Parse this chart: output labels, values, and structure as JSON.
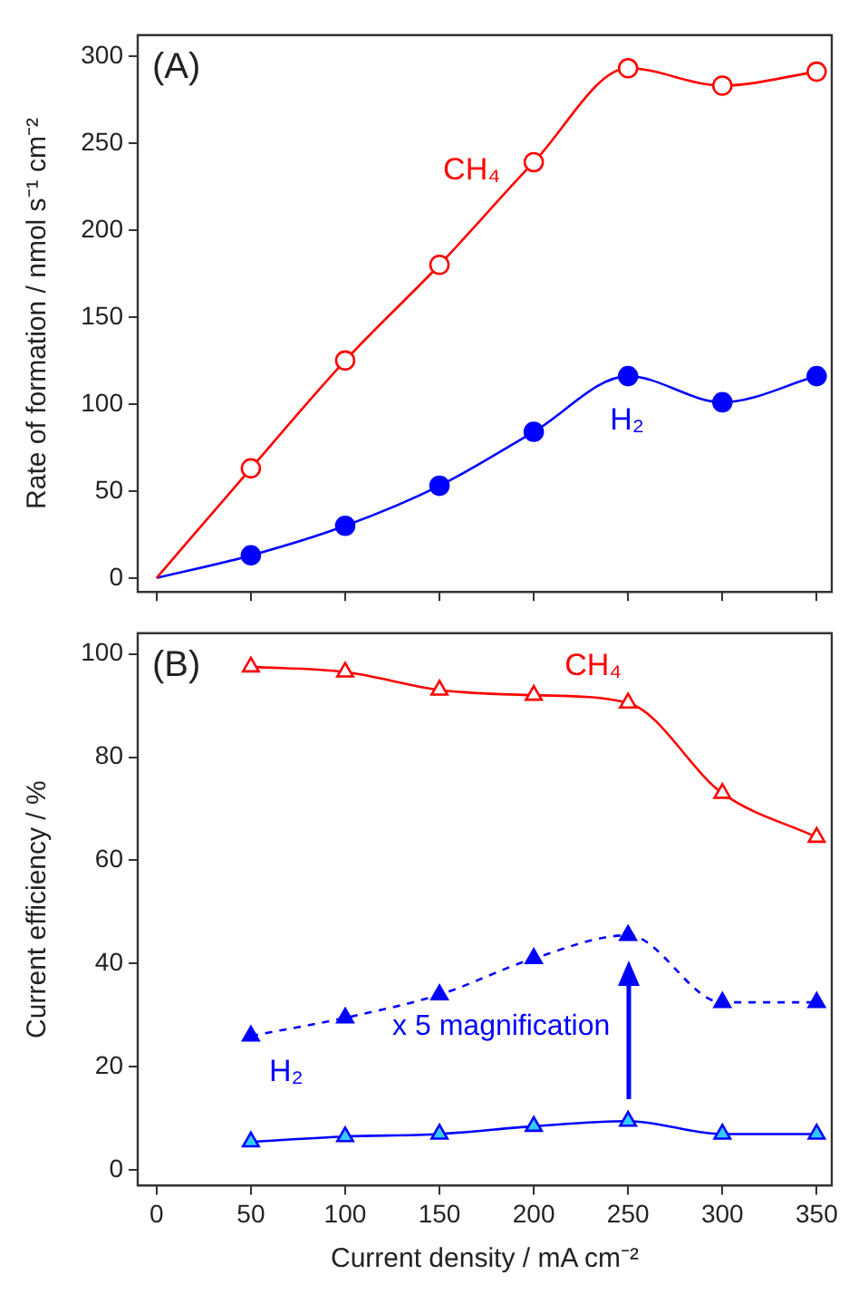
{
  "chart_data": [
    {
      "type": "line",
      "title": "(A)",
      "ylabel": "Rate of formation / nmol s⁻¹ cm⁻²",
      "x": [
        0,
        50,
        100,
        150,
        200,
        250,
        300,
        350
      ],
      "xlim": [
        -10,
        358
      ],
      "xticks": [
        0,
        50,
        100,
        150,
        200,
        250,
        300,
        350
      ],
      "ylim": [
        -8,
        312
      ],
      "yticks": [
        0,
        50,
        100,
        150,
        200,
        250,
        300
      ],
      "tick_labels": "y",
      "grid": false,
      "legend": false,
      "marker": "circle",
      "series": [
        {
          "name": "CH₄",
          "color": "#ff0000",
          "values": [
            0,
            63,
            125,
            180,
            239,
            293,
            283,
            291
          ]
        },
        {
          "name": "H₂",
          "color": "#0000ff",
          "values": [
            0,
            13,
            30,
            53,
            84,
            116,
            101,
            116
          ]
        }
      ]
    },
    {
      "type": "line",
      "title": "(B)",
      "xlabel": "Current density / mA cm⁻²",
      "ylabel": "Current efficiency / %",
      "x": [
        50,
        100,
        150,
        200,
        250,
        300,
        350
      ],
      "xlim": [
        -10,
        358
      ],
      "xticks": [
        0,
        50,
        100,
        150,
        200,
        250,
        300,
        350
      ],
      "ylim": [
        -3,
        104
      ],
      "yticks": [
        0,
        20,
        40,
        60,
        80,
        100
      ],
      "grid": false,
      "legend": false,
      "marker": "triangle",
      "annotations": [
        "x 5 magnification"
      ],
      "series": [
        {
          "name": "CH₄",
          "color": "#ff0000",
          "values": [
            97.5,
            96.5,
            93,
            92,
            90.5,
            73,
            64.5
          ]
        },
        {
          "color": "#0000ff",
          "line_style": "dashed",
          "values": [
            26,
            29.5,
            34,
            41,
            45.5,
            32.5,
            32.5
          ]
        },
        {
          "name": "H₂",
          "color": "#0000ff",
          "values": [
            5.5,
            6.5,
            7,
            8.5,
            9.5,
            7,
            7
          ]
        }
      ]
    }
  ]
}
